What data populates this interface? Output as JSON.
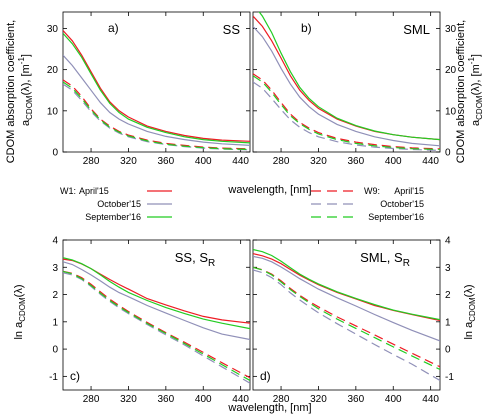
{
  "figure": {
    "shared_xlabel": "wavelength, [nm]",
    "top_ylabel_line1": "CDOM absorption coefficient,",
    "top_ylabel_line2_main": "a",
    "top_ylabel_line2_sub": "CDOM",
    "top_ylabel_line2_rest": "(λ), [m",
    "top_ylabel_line2_sup": "-1",
    "top_ylabel_line2_end": "]",
    "bottom_ylabel_main": "ln a",
    "bottom_ylabel_sub": "CDOM",
    "bottom_ylabel_rest": "(λ)"
  },
  "legend": {
    "left_title": "W1:",
    "right_title": "W9:",
    "entries": [
      "April'15",
      "October'15",
      "September'16"
    ],
    "colors": [
      "#ee1c24",
      "#9090b8",
      "#22cc22"
    ]
  },
  "colors": {
    "April'15": "#ee1c24",
    "October'15": "#9090b8",
    "September'16": "#22cc22",
    "shadow": "#555555"
  },
  "chart_data": [
    {
      "type": "line",
      "panel_letter": "a)",
      "panel_label": "SS",
      "panel_label_sub": "",
      "x": [
        250,
        260,
        270,
        280,
        290,
        300,
        310,
        320,
        340,
        360,
        380,
        400,
        420,
        450
      ],
      "xticks": [
        280,
        320,
        360,
        400,
        440
      ],
      "yticks": [
        0,
        10,
        20,
        30
      ],
      "xlim": [
        250,
        450
      ],
      "ylim": [
        0,
        34
      ],
      "series": [
        {
          "station": "W1",
          "period": "April'15",
          "dashed": false,
          "values": [
            29.5,
            27,
            23.5,
            19.5,
            15.5,
            12.2,
            10,
            8.5,
            6.3,
            5,
            4,
            3.3,
            2.9,
            2.6
          ]
        },
        {
          "station": "W1",
          "period": "October'15",
          "dashed": false,
          "values": [
            23.5,
            21,
            18,
            15,
            12,
            9.6,
            8,
            6.8,
            5,
            3.8,
            3,
            2.4,
            2,
            1.6
          ]
        },
        {
          "station": "W1",
          "period": "September'16",
          "dashed": false,
          "values": [
            28.8,
            26.3,
            23,
            19,
            15,
            11.8,
            9.6,
            8,
            6,
            4.7,
            3.7,
            3,
            2.6,
            2.2
          ]
        },
        {
          "station": "W9",
          "period": "April'15",
          "dashed": true,
          "values": [
            17.5,
            16,
            13.5,
            10.5,
            8,
            6.3,
            5,
            4.1,
            2.9,
            2.1,
            1.6,
            1.2,
            0.95,
            0.75
          ]
        },
        {
          "station": "W9",
          "period": "October'15",
          "dashed": true,
          "values": [
            16.5,
            15,
            12.5,
            9.8,
            7.5,
            5.8,
            4.6,
            3.7,
            2.5,
            1.8,
            1.3,
            0.95,
            0.7,
            0.5
          ]
        },
        {
          "station": "W9",
          "period": "September'16",
          "dashed": true,
          "values": [
            17,
            15.5,
            13,
            10.2,
            7.8,
            6,
            4.8,
            3.9,
            2.7,
            1.9,
            1.4,
            1.05,
            0.8,
            0.6
          ]
        }
      ]
    },
    {
      "type": "line",
      "panel_letter": "b)",
      "panel_label": "SML",
      "panel_label_sub": "",
      "x": [
        250,
        260,
        270,
        280,
        290,
        300,
        310,
        320,
        340,
        360,
        380,
        400,
        420,
        450
      ],
      "xticks": [
        280,
        320,
        360,
        400,
        440
      ],
      "yticks": [
        0,
        10,
        20,
        30
      ],
      "xlim": [
        250,
        450
      ],
      "ylim": [
        0,
        34
      ],
      "series": [
        {
          "station": "W1",
          "period": "April'15",
          "dashed": false,
          "values": [
            33,
            30.5,
            27,
            22.8,
            18.5,
            15,
            12.5,
            10.6,
            8,
            6.3,
            5,
            4.2,
            3.6,
            3
          ]
        },
        {
          "station": "W1",
          "period": "October'15",
          "dashed": false,
          "values": [
            30.5,
            28,
            24.5,
            20.3,
            16.5,
            13.3,
            11,
            9.2,
            6.7,
            5,
            3.7,
            2.8,
            2.1,
            1.5
          ]
        },
        {
          "station": "W1",
          "period": "September'16",
          "dashed": false,
          "values": [
            36,
            33,
            29,
            24,
            19.5,
            15.7,
            13,
            11,
            8.2,
            6.4,
            5.1,
            4.2,
            3.6,
            3
          ]
        },
        {
          "station": "W9",
          "period": "April'15",
          "dashed": true,
          "values": [
            19,
            17.5,
            15,
            12,
            9.2,
            7.2,
            5.8,
            4.7,
            3.3,
            2.4,
            1.8,
            1.3,
            1,
            0.75
          ]
        },
        {
          "station": "W9",
          "period": "October'15",
          "dashed": true,
          "values": [
            17,
            15.5,
            13,
            10.3,
            7.8,
            6,
            4.7,
            3.7,
            2.5,
            1.7,
            1.2,
            0.85,
            0.6,
            0.4
          ]
        },
        {
          "station": "W9",
          "period": "September'16",
          "dashed": true,
          "values": [
            18.5,
            17,
            14.5,
            11.5,
            8.8,
            6.9,
            5.5,
            4.4,
            3,
            2.1,
            1.5,
            1.1,
            0.8,
            0.6
          ]
        }
      ]
    },
    {
      "type": "line",
      "panel_letter": "c)",
      "panel_label": "SS, S",
      "panel_label_sub": "R",
      "x": [
        250,
        260,
        270,
        280,
        290,
        300,
        310,
        320,
        340,
        360,
        380,
        400,
        420,
        450
      ],
      "xticks": [
        280,
        320,
        360,
        400,
        440
      ],
      "yticks": [
        -1,
        0,
        1,
        2,
        3,
        4
      ],
      "xlim": [
        250,
        450
      ],
      "ylim": [
        -1.5,
        4
      ],
      "series": [
        {
          "station": "W1",
          "period": "April'15",
          "dashed": false,
          "values": [
            3.3,
            3.25,
            3.12,
            2.95,
            2.75,
            2.55,
            2.37,
            2.2,
            1.85,
            1.62,
            1.4,
            1.2,
            1.07,
            0.95
          ]
        },
        {
          "station": "W1",
          "period": "October'15",
          "dashed": false,
          "values": [
            3.2,
            3.1,
            2.92,
            2.72,
            2.5,
            2.27,
            2.07,
            1.92,
            1.6,
            1.32,
            1.05,
            0.78,
            0.55,
            0.35
          ]
        },
        {
          "station": "W1",
          "period": "September'16",
          "dashed": false,
          "values": [
            3.35,
            3.27,
            3.13,
            2.95,
            2.72,
            2.48,
            2.27,
            2.08,
            1.78,
            1.52,
            1.3,
            1.1,
            0.95,
            0.75
          ]
        },
        {
          "station": "W9",
          "period": "April'15",
          "dashed": true,
          "values": [
            2.85,
            2.78,
            2.62,
            2.38,
            2.1,
            1.83,
            1.6,
            1.38,
            0.98,
            0.6,
            0.25,
            -0.12,
            -0.5,
            -1.05
          ]
        },
        {
          "station": "W9",
          "period": "October'15",
          "dashed": true,
          "values": [
            2.8,
            2.72,
            2.55,
            2.3,
            2.01,
            1.75,
            1.51,
            1.3,
            0.9,
            0.52,
            0.15,
            -0.25,
            -0.65,
            -1.25
          ]
        },
        {
          "station": "W9",
          "period": "September'16",
          "dashed": true,
          "values": [
            2.85,
            2.76,
            2.58,
            2.33,
            2.05,
            1.78,
            1.55,
            1.34,
            0.94,
            0.57,
            0.2,
            -0.18,
            -0.57,
            -1.15
          ]
        }
      ]
    },
    {
      "type": "line",
      "panel_letter": "d)",
      "panel_label": "SML, S",
      "panel_label_sub": "R",
      "x": [
        250,
        260,
        270,
        280,
        290,
        300,
        310,
        320,
        340,
        360,
        380,
        400,
        420,
        450
      ],
      "xticks": [
        280,
        320,
        360,
        400,
        440
      ],
      "yticks": [
        -1,
        0,
        1,
        2,
        3,
        4
      ],
      "xlim": [
        250,
        450
      ],
      "ylim": [
        -1.5,
        4
      ],
      "series": [
        {
          "station": "W1",
          "period": "April'15",
          "dashed": false,
          "values": [
            3.5,
            3.42,
            3.3,
            3.13,
            2.92,
            2.71,
            2.53,
            2.36,
            2.08,
            1.84,
            1.6,
            1.42,
            1.27,
            1.05
          ]
        },
        {
          "station": "W1",
          "period": "October'15",
          "dashed": false,
          "values": [
            3.4,
            3.33,
            3.2,
            3.01,
            2.8,
            2.58,
            2.39,
            2.2,
            1.88,
            1.58,
            1.27,
            0.97,
            0.69,
            0.3
          ]
        },
        {
          "station": "W1",
          "period": "September'16",
          "dashed": false,
          "values": [
            3.65,
            3.57,
            3.43,
            3.22,
            2.98,
            2.75,
            2.56,
            2.39,
            2.1,
            1.86,
            1.63,
            1.43,
            1.28,
            1.08
          ]
        },
        {
          "station": "W9",
          "period": "April'15",
          "dashed": true,
          "values": [
            3,
            2.91,
            2.75,
            2.5,
            2.22,
            1.97,
            1.75,
            1.55,
            1.18,
            0.85,
            0.52,
            0.18,
            -0.15,
            -0.65
          ]
        },
        {
          "station": "W9",
          "period": "October'15",
          "dashed": true,
          "values": [
            2.9,
            2.8,
            2.62,
            2.36,
            2.06,
            1.8,
            1.56,
            1.33,
            0.93,
            0.55,
            0.17,
            -0.2,
            -0.55,
            -1.15
          ]
        },
        {
          "station": "W9",
          "period": "September'16",
          "dashed": true,
          "values": [
            3,
            2.9,
            2.72,
            2.46,
            2.18,
            1.93,
            1.7,
            1.48,
            1.1,
            0.76,
            0.42,
            0.08,
            -0.25,
            -0.75
          ]
        }
      ]
    }
  ]
}
